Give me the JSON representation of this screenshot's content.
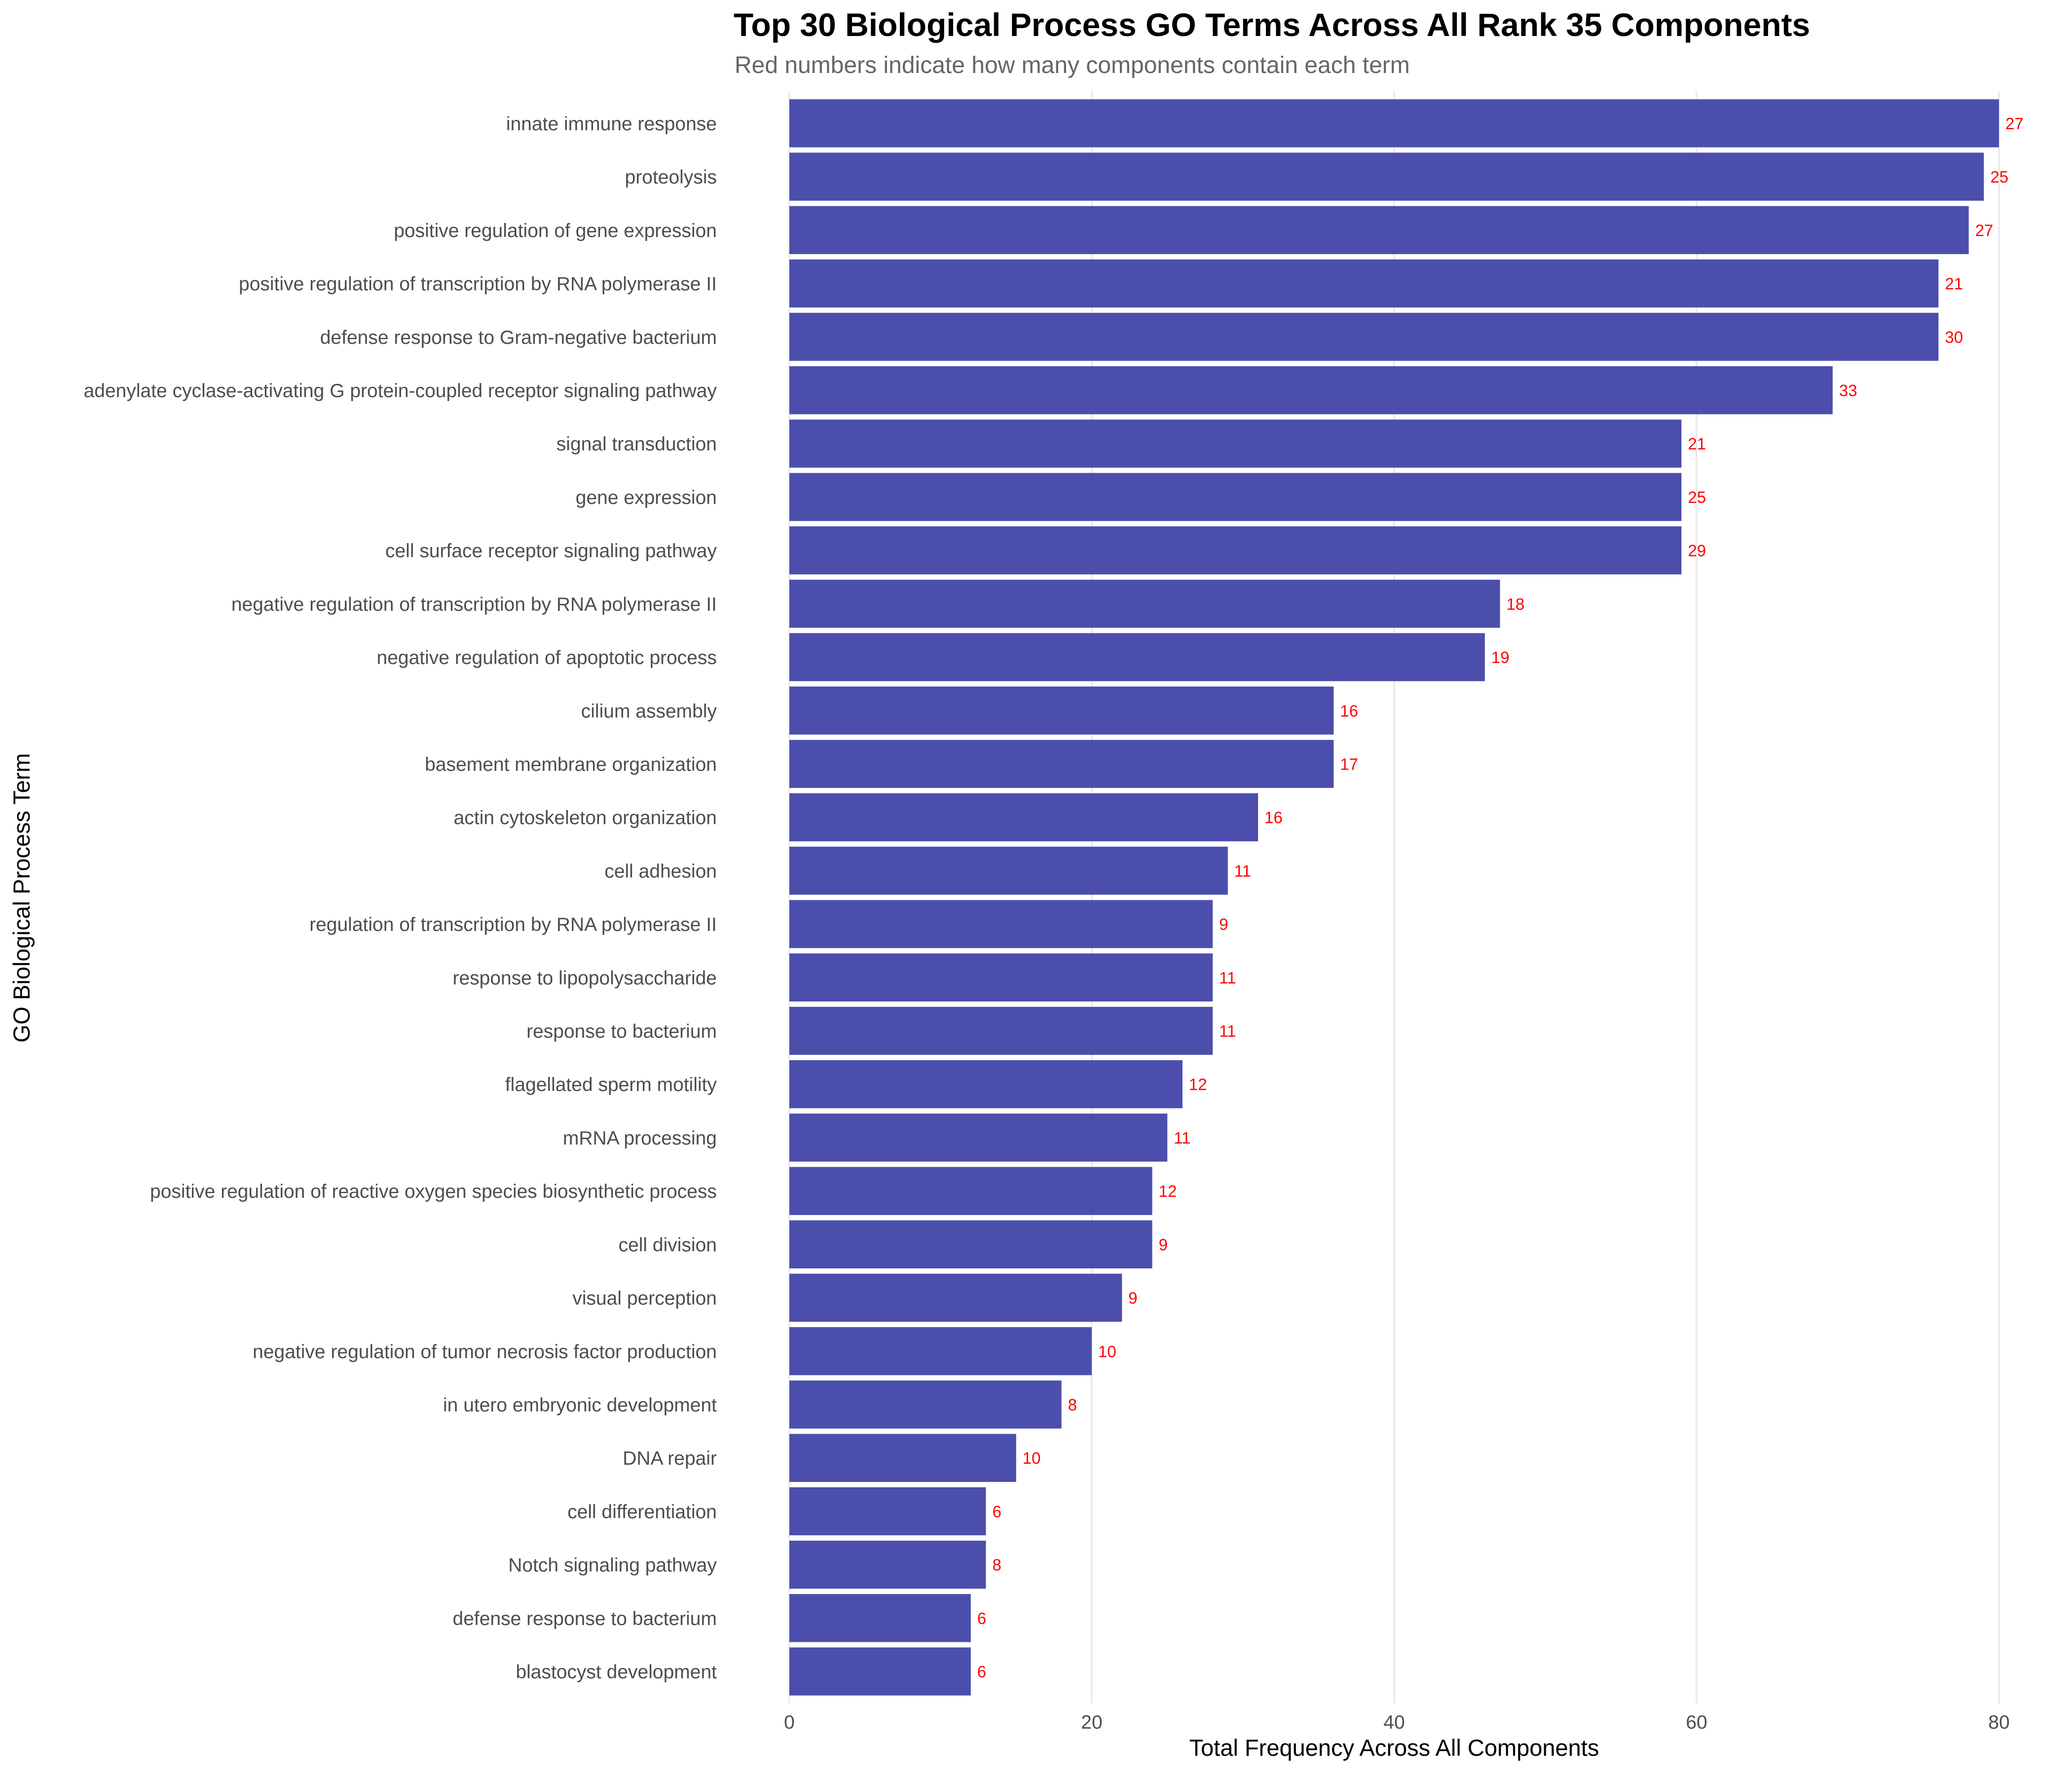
{
  "chart_data": {
    "type": "bar",
    "orientation": "horizontal",
    "title": "Top 30 Biological Process GO Terms Across All Rank 35 Components",
    "subtitle": "Red numbers indicate how many components contain each term",
    "xlabel": "Total Frequency Across All Components",
    "ylabel": "GO Biological Process Term",
    "xlim": [
      0,
      80
    ],
    "xticks": [
      0,
      20,
      40,
      60,
      80
    ],
    "xtick_labels": [
      "0",
      "20",
      "40",
      "60",
      "80"
    ],
    "grid": "vertical major gridlines",
    "legend": "none",
    "colors": {
      "bar": "#4b4fab",
      "count_label": "#ff0000",
      "grid": "#ebebeb",
      "text": "#4d4d4d"
    },
    "categories": [
      "innate immune response",
      "proteolysis",
      "positive regulation of gene expression",
      "positive regulation of transcription by RNA polymerase II",
      "defense response to Gram-negative bacterium",
      "adenylate cyclase-activating G protein-coupled receptor signaling pathway",
      "signal transduction",
      "gene expression",
      "cell surface receptor signaling pathway",
      "negative regulation of transcription by RNA polymerase II",
      "negative regulation of apoptotic process",
      "cilium assembly",
      "basement membrane organization",
      "actin cytoskeleton organization",
      "cell adhesion",
      "regulation of transcription by RNA polymerase II",
      "response to lipopolysaccharide",
      "response to bacterium",
      "flagellated sperm motility",
      "mRNA processing",
      "positive regulation of reactive oxygen species biosynthetic process",
      "cell division",
      "visual perception",
      "negative regulation of tumor necrosis factor production",
      "in utero embryonic development",
      "DNA repair",
      "cell differentiation",
      "Notch signaling pathway",
      "defense response to bacterium",
      "blastocyst development"
    ],
    "series": [
      {
        "name": "Total Frequency",
        "values": [
          80,
          79,
          78,
          76,
          76,
          69,
          59,
          59,
          59,
          47,
          46,
          36,
          36,
          31,
          29,
          28,
          28,
          28,
          26,
          25,
          24,
          24,
          22,
          20,
          18,
          15,
          13,
          13,
          12,
          12
        ]
      },
      {
        "name": "Components containing term (red labels)",
        "values": [
          27,
          25,
          27,
          21,
          30,
          33,
          21,
          25,
          29,
          18,
          19,
          16,
          17,
          16,
          11,
          9,
          11,
          11,
          12,
          11,
          12,
          9,
          9,
          10,
          8,
          10,
          6,
          8,
          6,
          6
        ]
      }
    ]
  }
}
